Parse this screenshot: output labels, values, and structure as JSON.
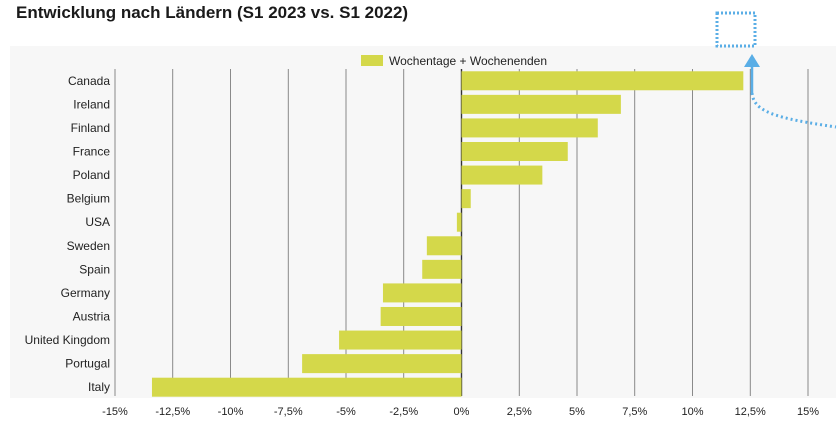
{
  "chart_data": {
    "type": "bar",
    "orientation": "horizontal",
    "title": "Entwicklung nach Ländern (S1 2023 vs. S1 2022)",
    "legend_position": "top",
    "grid": true,
    "xlim": [
      -15,
      15
    ],
    "x_ticks": [
      -15,
      -12.5,
      -10,
      -7.5,
      -5,
      -2.5,
      0,
      2.5,
      5,
      7.5,
      10,
      12.5,
      15
    ],
    "x_tick_labels": [
      "-15%",
      "-12,5%",
      "-10%",
      "-7,5%",
      "-5%",
      "-2,5%",
      "0%",
      "2,5%",
      "5%",
      "7,5%",
      "10%",
      "12,5%",
      "15%"
    ],
    "categories": [
      "Canada",
      "Ireland",
      "Finland",
      "France",
      "Poland",
      "Belgium",
      "USA",
      "Sweden",
      "Spain",
      "Germany",
      "Austria",
      "United Kingdom",
      "Portugal",
      "Italy"
    ],
    "series": [
      {
        "name": "Wochentage + Wochenenden",
        "color": "#d4d84a",
        "values": [
          12.2,
          6.9,
          5.9,
          4.6,
          3.5,
          0.4,
          -0.2,
          -1.5,
          -1.7,
          -3.4,
          -3.5,
          -5.3,
          -6.9,
          -13.4
        ]
      }
    ]
  },
  "colors": {
    "plot_background": "#f7f7f7",
    "gridline": "#6e6e6e",
    "zero_line": "#333333",
    "annotation": "#5aaee6"
  }
}
